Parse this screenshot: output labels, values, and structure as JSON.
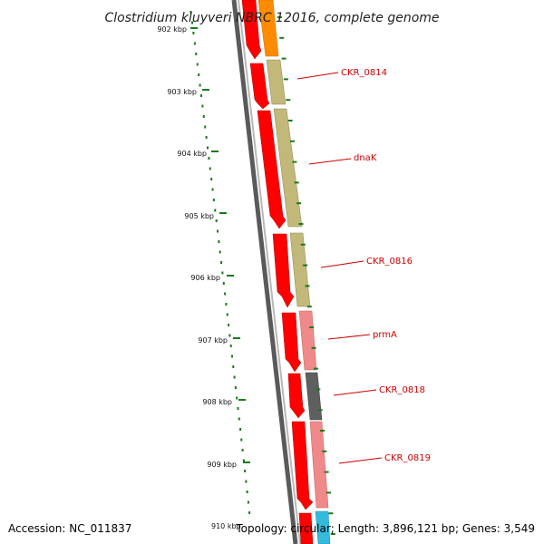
{
  "header": {
    "title": "Clostridium kluyveri NBRC 12016, complete genome"
  },
  "footer": {
    "accession": "Accession: NC_011837",
    "summary": "Topology: circular; Length: 3,896,121 bp; Genes: 3,549"
  },
  "scale": {
    "ticks": [
      "902 kbp",
      "903 kbp",
      "904 kbp",
      "905 kbp",
      "906 kbp",
      "907 kbp",
      "908 kbp",
      "909 kbp",
      "910 kbp"
    ]
  },
  "genes": [
    {
      "label": "CKR_0814",
      "color": "#c2b87a"
    },
    {
      "label": "dnaK",
      "color": "#c2b87a"
    },
    {
      "label": "CKR_0816",
      "color": "#c2b87a"
    },
    {
      "label": "prmA",
      "color": "#f08a8a"
    },
    {
      "label": "CKR_0818",
      "color": "#5f5f5f"
    },
    {
      "label": "CKR_0819",
      "color": "#f08a8a"
    }
  ],
  "colors": {
    "forward_strand": "#ff0000",
    "label_text": "#cc0000",
    "tick_green": "#1a7a1a",
    "backbone": "#777777",
    "orange_gene": "#ff8c00",
    "cyan_gene": "#33bbdd"
  }
}
